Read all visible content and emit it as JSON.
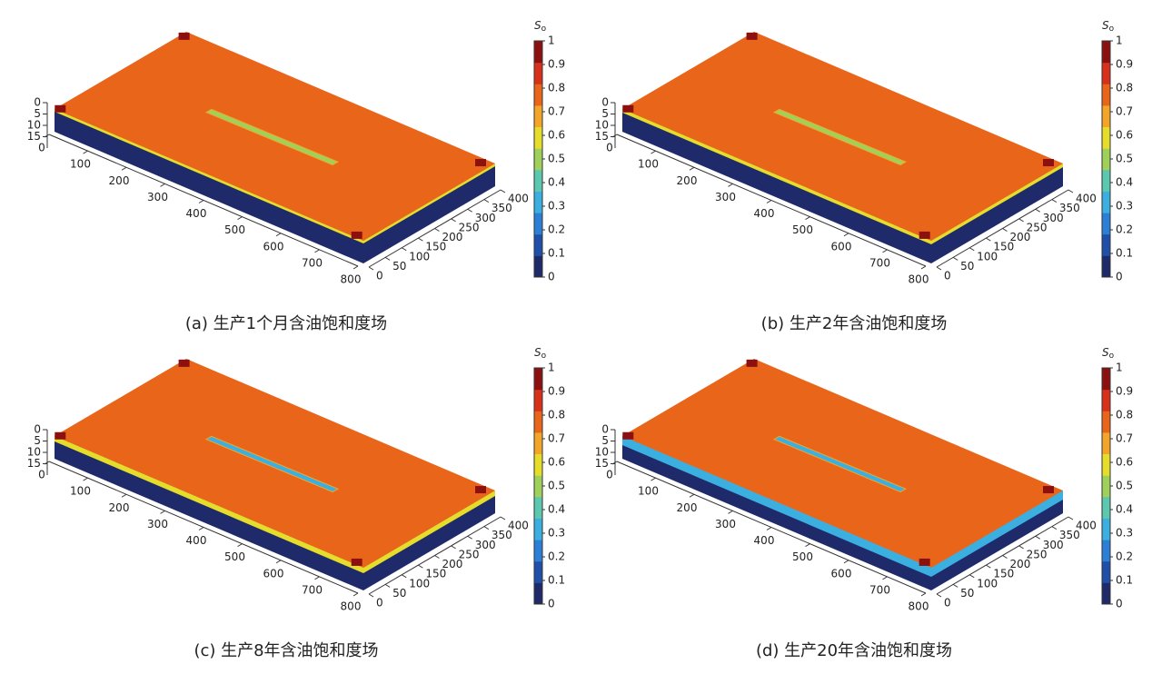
{
  "chart_data": [
    {
      "type": "surface3d",
      "caption": "(a) 生产1个月含油饱和度场",
      "colorbar_symbol": "S",
      "colorbar_subscript": "o",
      "xlim": [
        0,
        800
      ],
      "xticks": [
        0,
        100,
        200,
        300,
        400,
        500,
        600,
        700,
        800
      ],
      "ylim": [
        0,
        400
      ],
      "yticks": [
        0,
        50,
        100,
        150,
        200,
        250,
        300,
        350,
        400
      ],
      "zlim": [
        0,
        20
      ],
      "zticks": [
        0,
        5,
        10,
        15
      ],
      "clim": [
        0,
        1
      ],
      "cticks": [
        0,
        0.1,
        0.2,
        0.3,
        0.4,
        0.5,
        0.6,
        0.7,
        0.8,
        0.9,
        1
      ],
      "colormap": [
        "#1f2a6b",
        "#1f4fa8",
        "#2b7fd6",
        "#3bb0e0",
        "#5cc8b0",
        "#9fd15a",
        "#e6dd2a",
        "#f3a52a",
        "#e8651a",
        "#d8301a",
        "#8c1010"
      ]
    },
    {
      "type": "surface3d",
      "caption": "(b) 生产2年含油饱和度场",
      "colorbar_symbol": "S",
      "colorbar_subscript": "o",
      "xlim": [
        0,
        800
      ],
      "xticks": [
        0,
        100,
        200,
        300,
        400,
        500,
        600,
        700,
        800
      ],
      "ylim": [
        0,
        400
      ],
      "yticks": [
        0,
        50,
        100,
        150,
        200,
        250,
        300,
        350,
        400
      ],
      "zlim": [
        0,
        20
      ],
      "zticks": [
        0,
        5,
        10,
        15
      ],
      "clim": [
        0,
        1
      ],
      "cticks": [
        0,
        0.1,
        0.2,
        0.3,
        0.4,
        0.5,
        0.6,
        0.7,
        0.8,
        0.9,
        1
      ],
      "colormap": [
        "#1f2a6b",
        "#1f4fa8",
        "#2b7fd6",
        "#3bb0e0",
        "#5cc8b0",
        "#9fd15a",
        "#e6dd2a",
        "#f3a52a",
        "#e8651a",
        "#d8301a",
        "#8c1010"
      ]
    },
    {
      "type": "surface3d",
      "caption": "(c) 生产8年含油饱和度场",
      "colorbar_symbol": "S",
      "colorbar_subscript": "o",
      "xlim": [
        0,
        800
      ],
      "xticks": [
        0,
        100,
        200,
        300,
        400,
        500,
        600,
        700,
        800
      ],
      "ylim": [
        0,
        400
      ],
      "yticks": [
        0,
        50,
        100,
        150,
        200,
        250,
        300,
        350,
        400
      ],
      "zlim": [
        0,
        20
      ],
      "zticks": [
        0,
        5,
        10,
        15
      ],
      "clim": [
        0,
        1
      ],
      "cticks": [
        0,
        0.1,
        0.2,
        0.3,
        0.4,
        0.5,
        0.6,
        0.7,
        0.8,
        0.9,
        1
      ],
      "colormap": [
        "#1f2a6b",
        "#1f4fa8",
        "#2b7fd6",
        "#3bb0e0",
        "#5cc8b0",
        "#9fd15a",
        "#e6dd2a",
        "#f3a52a",
        "#e8651a",
        "#d8301a",
        "#8c1010"
      ]
    },
    {
      "type": "surface3d",
      "caption": "(d) 生产20年含油饱和度场",
      "colorbar_symbol": "S",
      "colorbar_subscript": "o",
      "xlim": [
        0,
        800
      ],
      "xticks": [
        0,
        100,
        200,
        300,
        400,
        500,
        600,
        700,
        800
      ],
      "ylim": [
        0,
        400
      ],
      "yticks": [
        0,
        50,
        100,
        150,
        200,
        250,
        300,
        350,
        400
      ],
      "zlim": [
        0,
        20
      ],
      "zticks": [
        0,
        5,
        10,
        15
      ],
      "clim": [
        0,
        1
      ],
      "cticks": [
        0,
        0.1,
        0.2,
        0.3,
        0.4,
        0.5,
        0.6,
        0.7,
        0.8,
        0.9,
        1
      ],
      "colormap": [
        "#1f2a6b",
        "#1f4fa8",
        "#2b7fd6",
        "#3bb0e0",
        "#5cc8b0",
        "#9fd15a",
        "#e6dd2a",
        "#f3a52a",
        "#e8651a",
        "#d8301a",
        "#8c1010"
      ]
    }
  ]
}
